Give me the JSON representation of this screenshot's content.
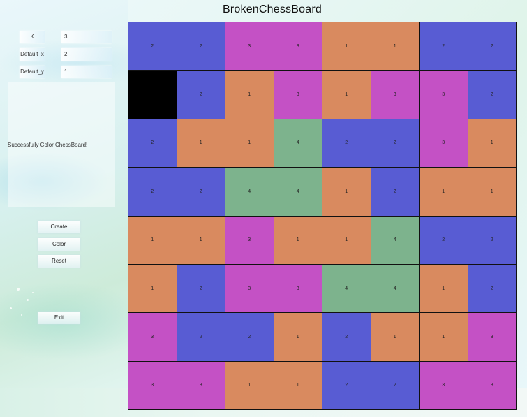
{
  "app": {
    "title": "BrokenChessBoard"
  },
  "params": [
    {
      "label": "K",
      "value": "3"
    },
    {
      "label": "Default_x",
      "value": "2"
    },
    {
      "label": "Default_y",
      "value": "1"
    }
  ],
  "status": {
    "message": "Successfully Color ChessBoard!"
  },
  "buttons": {
    "create": "Create",
    "color": "Color",
    "reset": "Reset",
    "exit": "Exit"
  },
  "colors": {
    "1": "#d98a5f",
    "2": "#585cd3",
    "3": "#c451c5",
    "4": "#7db38d",
    "broken": "#000000"
  },
  "board": {
    "size": 8,
    "broken": {
      "row": 1,
      "col": 0
    },
    "cells": [
      [
        "2",
        "2",
        "3",
        "3",
        "1",
        "1",
        "2",
        "2"
      ],
      [
        "",
        "2",
        "1",
        "3",
        "1",
        "3",
        "3",
        "2"
      ],
      [
        "2",
        "1",
        "1",
        "4",
        "2",
        "2",
        "3",
        "1"
      ],
      [
        "2",
        "2",
        "4",
        "4",
        "1",
        "2",
        "1",
        "1"
      ],
      [
        "1",
        "1",
        "3",
        "1",
        "1",
        "4",
        "2",
        "2"
      ],
      [
        "1",
        "2",
        "3",
        "3",
        "4",
        "4",
        "1",
        "2"
      ],
      [
        "3",
        "2",
        "2",
        "1",
        "2",
        "1",
        "1",
        "3"
      ],
      [
        "3",
        "3",
        "1",
        "1",
        "2",
        "2",
        "3",
        "3"
      ]
    ]
  }
}
